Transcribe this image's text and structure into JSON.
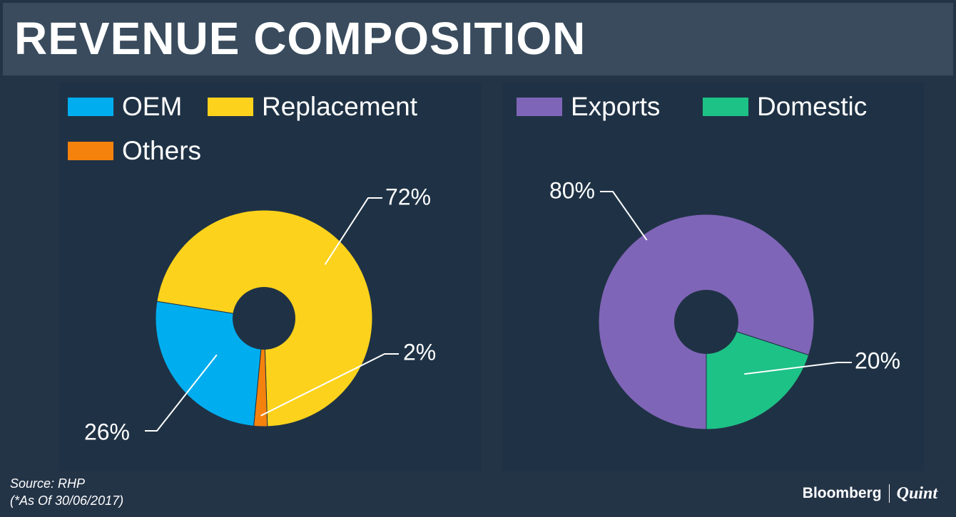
{
  "title": "REVENUE COMPOSITION",
  "source": "Source: RHP",
  "note": "(*As Of 30/06/2017)",
  "branding": {
    "primary": "Bloomberg",
    "secondary": "Quint"
  },
  "colors": {
    "background": "#243447",
    "title_bar": "#394b5d",
    "panel": "#1f3245",
    "text": "#ffffff"
  },
  "chart_data": [
    {
      "type": "pie",
      "style": "donut",
      "title": "",
      "categories": [
        "OEM",
        "Replacement",
        "Others"
      ],
      "values": [
        26,
        72,
        2
      ],
      "labels": [
        "26%",
        "72%",
        "2%"
      ],
      "colors": [
        "#00aeef",
        "#fcd21c",
        "#f5820d"
      ],
      "legend": "top-left"
    },
    {
      "type": "pie",
      "style": "donut",
      "title": "",
      "categories": [
        "Exports",
        "Domestic"
      ],
      "values": [
        80,
        20
      ],
      "labels": [
        "80%",
        "20%"
      ],
      "colors": [
        "#7f65b7",
        "#1dc286"
      ],
      "legend": "top-left"
    }
  ]
}
